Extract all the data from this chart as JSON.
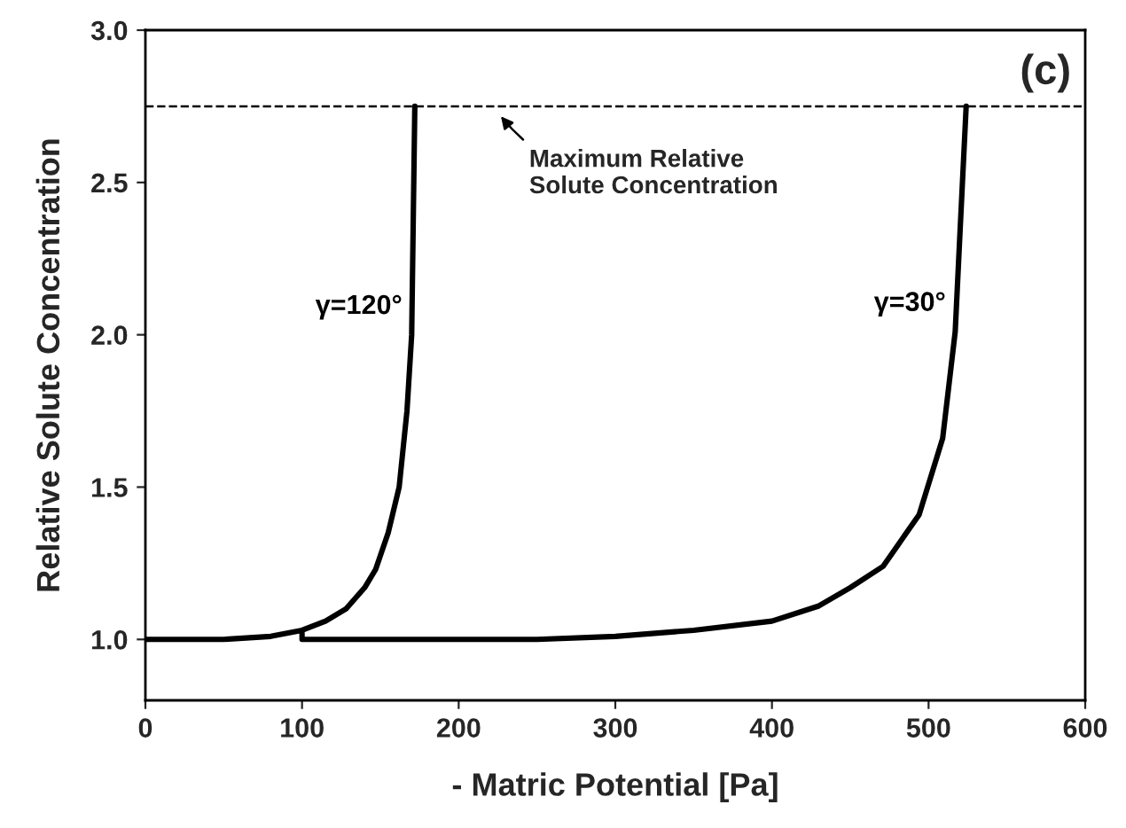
{
  "chart_data": {
    "type": "line",
    "xlabel": "- Matric Potential [Pa]",
    "ylabel": "Relative Solute Concentration",
    "xlim": [
      0,
      600
    ],
    "xticks": [
      0,
      100,
      200,
      300,
      400,
      500,
      600
    ],
    "ylim": [
      0.8,
      3.0
    ],
    "yticks": [
      {
        "value": 1.0,
        "label": "1.0"
      },
      {
        "value": 1.5,
        "label": "1.5"
      },
      {
        "value": 2.0,
        "label": "2.0"
      },
      {
        "value": 2.5,
        "label": "2.5"
      },
      {
        "value": 3.0,
        "label": "3.0"
      }
    ],
    "grid": false,
    "legend": false,
    "marker": "none",
    "line_style": "solid",
    "series": [
      {
        "name": "γ=120°",
        "color": "#000000",
        "x": [
          0,
          50,
          80,
          100,
          115,
          128,
          140,
          147,
          155,
          162,
          167,
          170,
          172
        ],
        "values": [
          1.0,
          1.0,
          1.01,
          1.03,
          1.06,
          1.1,
          1.17,
          1.23,
          1.35,
          1.5,
          1.75,
          2.0,
          2.75
        ]
      },
      {
        "name": "γ=30°",
        "color": "#000000",
        "x": [
          100,
          100,
          150,
          200,
          250,
          300,
          350,
          400,
          430,
          450,
          471,
          494,
          509,
          517,
          520,
          524
        ],
        "values": [
          1.02,
          1.0,
          1.0,
          1.0,
          1.0,
          1.01,
          1.03,
          1.06,
          1.11,
          1.17,
          1.24,
          1.41,
          1.66,
          2.01,
          2.33,
          2.75
        ]
      }
    ],
    "ref_lines": [
      {
        "axis": "y",
        "value": 2.75,
        "line_style": "dashed",
        "color": "#000000"
      }
    ],
    "annotations": [
      "(c)",
      {
        "text": "Maximum Relative\nSolute Concentration",
        "x": 225,
        "y": 2.75
      }
    ]
  }
}
